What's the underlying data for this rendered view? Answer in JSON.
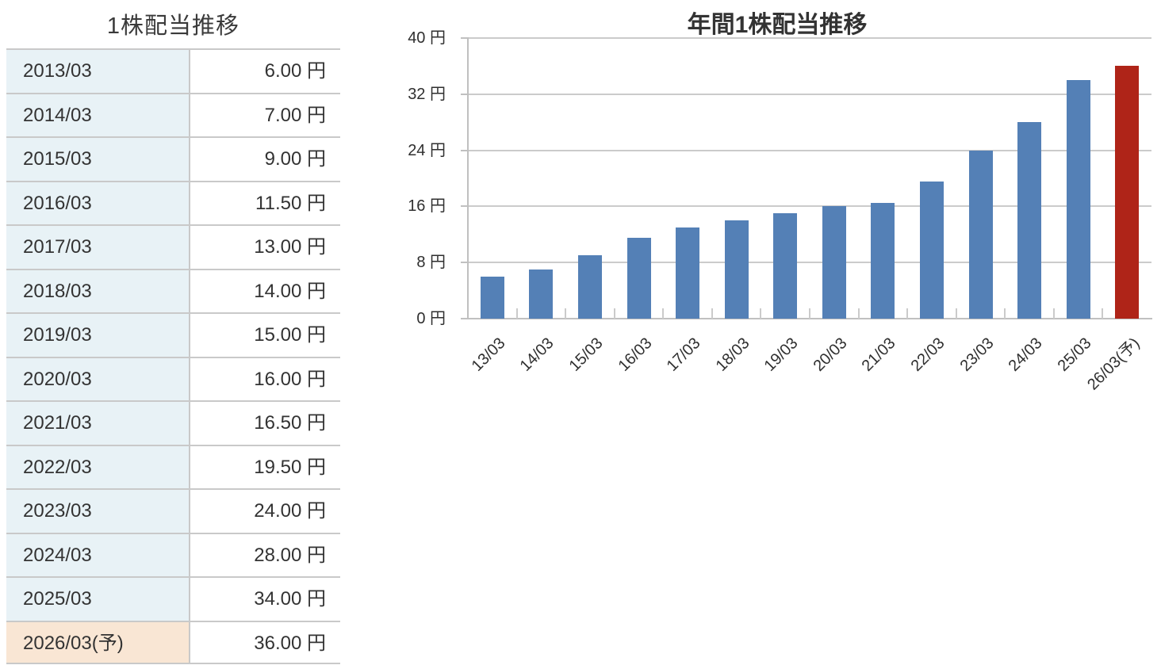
{
  "table": {
    "title": "1株配当推移",
    "rows": [
      {
        "year": "2013/03",
        "value": "6.00 円",
        "highlight": false
      },
      {
        "year": "2014/03",
        "value": "7.00 円",
        "highlight": false
      },
      {
        "year": "2015/03",
        "value": "9.00 円",
        "highlight": false
      },
      {
        "year": "2016/03",
        "value": "11.50 円",
        "highlight": false
      },
      {
        "year": "2017/03",
        "value": "13.00 円",
        "highlight": false
      },
      {
        "year": "2018/03",
        "value": "14.00 円",
        "highlight": false
      },
      {
        "year": "2019/03",
        "value": "15.00 円",
        "highlight": false
      },
      {
        "year": "2020/03",
        "value": "16.00 円",
        "highlight": false
      },
      {
        "year": "2021/03",
        "value": "16.50 円",
        "highlight": false
      },
      {
        "year": "2022/03",
        "value": "19.50 円",
        "highlight": false
      },
      {
        "year": "2023/03",
        "value": "24.00 円",
        "highlight": false
      },
      {
        "year": "2024/03",
        "value": "28.00 円",
        "highlight": false
      },
      {
        "year": "2025/03",
        "value": "34.00 円",
        "highlight": false
      },
      {
        "year": "2026/03(予)",
        "value": "36.00 円",
        "highlight": true
      }
    ]
  },
  "chart": {
    "title": "年間1株配当推移"
  },
  "chart_data": {
    "type": "bar",
    "title": "年間1株配当推移",
    "categories": [
      "13/03",
      "14/03",
      "15/03",
      "16/03",
      "17/03",
      "18/03",
      "19/03",
      "20/03",
      "21/03",
      "22/03",
      "23/03",
      "24/03",
      "25/03",
      "26/03(予)"
    ],
    "values": [
      6,
      7,
      9,
      11.5,
      13,
      14,
      15,
      16,
      16.5,
      19.5,
      24,
      28,
      34,
      36
    ],
    "xlabel": "",
    "ylabel": "円",
    "ylim": [
      0,
      40
    ],
    "yticks": [
      0,
      8,
      16,
      24,
      32,
      40
    ],
    "ytick_labels": [
      "0 円",
      "8 円",
      "16 円",
      "24 円",
      "32 円",
      "40 円"
    ],
    "grid": true,
    "legend": "none",
    "bar_color": "#5480b6",
    "forecast_bar_color": "#af2418",
    "forecast_index": 13
  },
  "colors": {
    "text": "#333333",
    "table_year_bg": "#e8f2f6",
    "table_forecast_bg": "#f9e6d4",
    "table_border": "#c9c9c9",
    "bar_blue": "#5480b6",
    "bar_red": "#af2418",
    "grid": "#cbcbcb",
    "axis": "#c0c0c0"
  }
}
